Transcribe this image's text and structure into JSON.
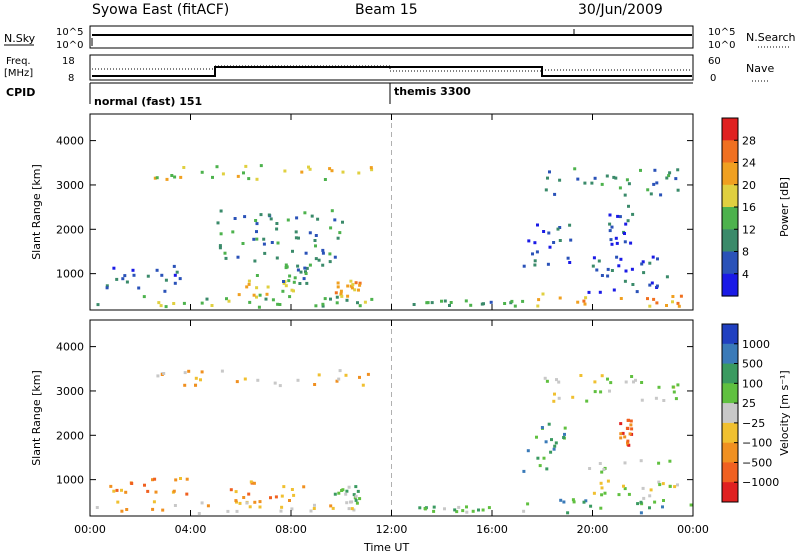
{
  "header": {
    "station": "Syowa East (fitACF)",
    "beam": "Beam 15",
    "date": "30/Jun/2009"
  },
  "status_panels": {
    "nsky_label": "N.Sky",
    "nsearch_label": "N.Search",
    "freq_label_line1": "Freq.",
    "freq_label_line2": "[MHz]",
    "nave_label": "Nave",
    "cpid_label": "CPID",
    "left_ticks_top": [
      "10^5",
      "10^0"
    ],
    "right_ticks_top": [
      "10^5",
      "10^0"
    ],
    "left_ticks_freq": [
      "18",
      "8"
    ],
    "right_ticks_nave": [
      "60",
      "0"
    ],
    "cpid_segments": [
      {
        "label": "normal (fast) 151",
        "start_hr": 0
      },
      {
        "label": "themis 3300",
        "start_hr": 12
      }
    ]
  },
  "chart_data": [
    {
      "type": "heatmap",
      "name": "power",
      "ylabel": "Slant Range [km]",
      "xlabel": "Time UT",
      "x_ticks": [
        "00:00",
        "04:00",
        "08:00",
        "12:00",
        "16:00",
        "20:00",
        "00:00"
      ],
      "y_ticks": [
        1000,
        2000,
        3000,
        4000
      ],
      "xlim_hr": [
        0,
        24
      ],
      "ylim_km": [
        180,
        4600
      ],
      "colorbar_label": "Power [dB]",
      "colorbar_ticks": [
        4,
        8,
        12,
        16,
        20,
        24,
        28
      ],
      "colors": [
        "#1a1ae6",
        "#2a52b8",
        "#3a8a6a",
        "#4db24d",
        "#e0d040",
        "#f0a020",
        "#f07020",
        "#e02020"
      ],
      "regions": [
        {
          "t0": 0.2,
          "t1": 11.2,
          "r0": 250,
          "r1": 550,
          "level": 3
        },
        {
          "t0": 0.6,
          "t1": 4.0,
          "r0": 550,
          "r1": 1200,
          "level": 1
        },
        {
          "t0": 5.5,
          "t1": 8.6,
          "r0": 500,
          "r1": 1000,
          "level": 4
        },
        {
          "t0": 7.4,
          "t1": 8.6,
          "r0": 800,
          "r1": 1250,
          "level": 2
        },
        {
          "t0": 9.7,
          "t1": 10.7,
          "r0": 500,
          "r1": 900,
          "level": 5
        },
        {
          "t0": 2.5,
          "t1": 11.3,
          "r0": 3150,
          "r1": 3500,
          "level": 4
        },
        {
          "t0": 5.0,
          "t1": 10.0,
          "r0": 1200,
          "r1": 2500,
          "level": 2
        },
        {
          "t0": 12.8,
          "t1": 17.2,
          "r0": 300,
          "r1": 420,
          "level": 2
        },
        {
          "t0": 17.2,
          "t1": 23.9,
          "r0": 280,
          "r1": 600,
          "level": 5
        },
        {
          "t0": 17.2,
          "t1": 19.2,
          "r0": 1200,
          "r1": 2300,
          "level": 1
        },
        {
          "t0": 19.8,
          "t1": 23.5,
          "r0": 600,
          "r1": 1500,
          "level": 1
        },
        {
          "t0": 20.6,
          "t1": 21.6,
          "r0": 1500,
          "r1": 2600,
          "level": 1
        },
        {
          "t0": 17.8,
          "t1": 23.5,
          "r0": 2800,
          "r1": 3400,
          "level": 2
        }
      ]
    },
    {
      "type": "heatmap",
      "name": "velocity",
      "ylabel": "Slant Range [km]",
      "xlabel": "Time UT",
      "x_ticks": [
        "00:00",
        "04:00",
        "08:00",
        "12:00",
        "16:00",
        "20:00",
        "00:00"
      ],
      "y_ticks": [
        1000,
        2000,
        3000,
        4000
      ],
      "xlim_hr": [
        0,
        24
      ],
      "ylim_km": [
        180,
        4600
      ],
      "colorbar_label": "Velocity [m s⁻¹]",
      "colorbar_ticks": [
        "1000",
        "500",
        "100",
        "25",
        "−25",
        "−100",
        "−500",
        "−1000"
      ],
      "colors": [
        "#2040c0",
        "#3a7ab8",
        "#3a9a60",
        "#60c040",
        "#c8c8c8",
        "#f0c030",
        "#f09020",
        "#f06020",
        "#e02020"
      ],
      "regions": [
        {
          "t0": 0.2,
          "t1": 11.2,
          "r0": 250,
          "r1": 550,
          "level": 5
        },
        {
          "t0": 0.6,
          "t1": 4.0,
          "r0": 550,
          "r1": 1100,
          "level": 6
        },
        {
          "t0": 5.5,
          "t1": 8.6,
          "r0": 500,
          "r1": 1000,
          "level": 6
        },
        {
          "t0": 9.7,
          "t1": 10.7,
          "r0": 500,
          "r1": 900,
          "level": 3
        },
        {
          "t0": 2.5,
          "t1": 11.3,
          "r0": 3150,
          "r1": 3500,
          "level": 5
        },
        {
          "t0": 12.8,
          "t1": 17.2,
          "r0": 300,
          "r1": 420,
          "level": 3
        },
        {
          "t0": 17.2,
          "t1": 23.9,
          "r0": 280,
          "r1": 600,
          "level": 2
        },
        {
          "t0": 17.2,
          "t1": 19.2,
          "r0": 1200,
          "r1": 2300,
          "level": 2
        },
        {
          "t0": 19.8,
          "t1": 23.5,
          "r0": 600,
          "r1": 1500,
          "level": 4
        },
        {
          "t0": 21.0,
          "t1": 21.5,
          "r0": 1800,
          "r1": 2400,
          "level": 7
        },
        {
          "t0": 17.8,
          "t1": 23.5,
          "r0": 2800,
          "r1": 3400,
          "level": 4
        }
      ]
    }
  ]
}
